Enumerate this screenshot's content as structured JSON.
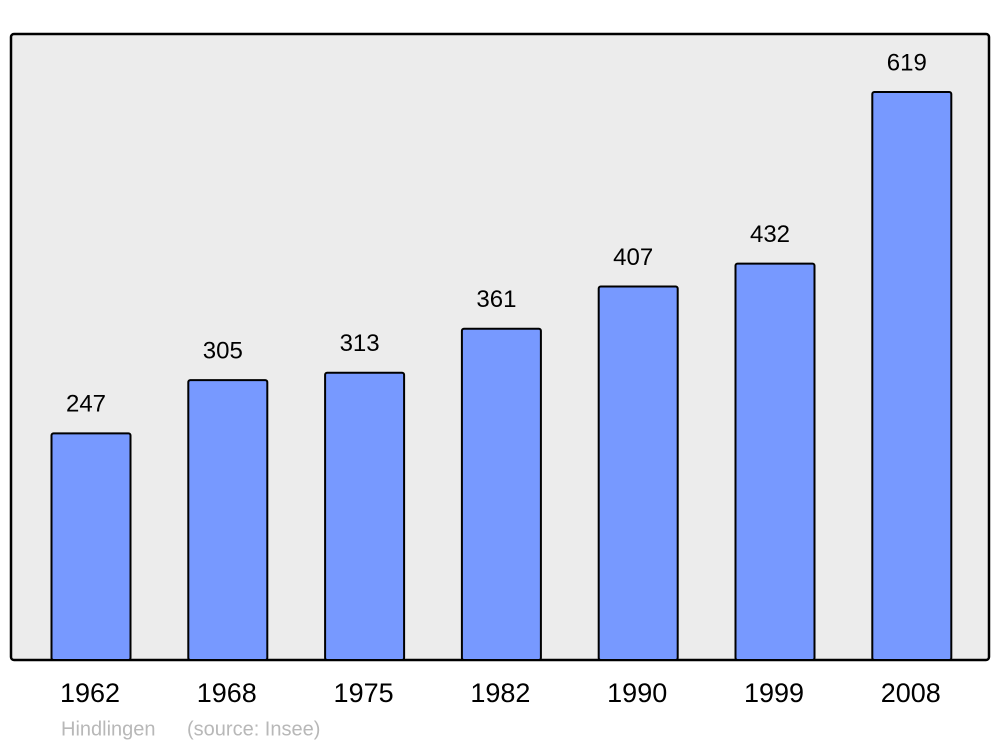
{
  "chart_data": {
    "type": "bar",
    "categories": [
      "1962",
      "1968",
      "1975",
      "1982",
      "1990",
      "1999",
      "2008"
    ],
    "values": [
      247,
      305,
      313,
      361,
      407,
      432,
      619
    ],
    "color": "#7799ff",
    "footer": {
      "place": "Hindlingen",
      "source": "(source: Insee)"
    }
  }
}
